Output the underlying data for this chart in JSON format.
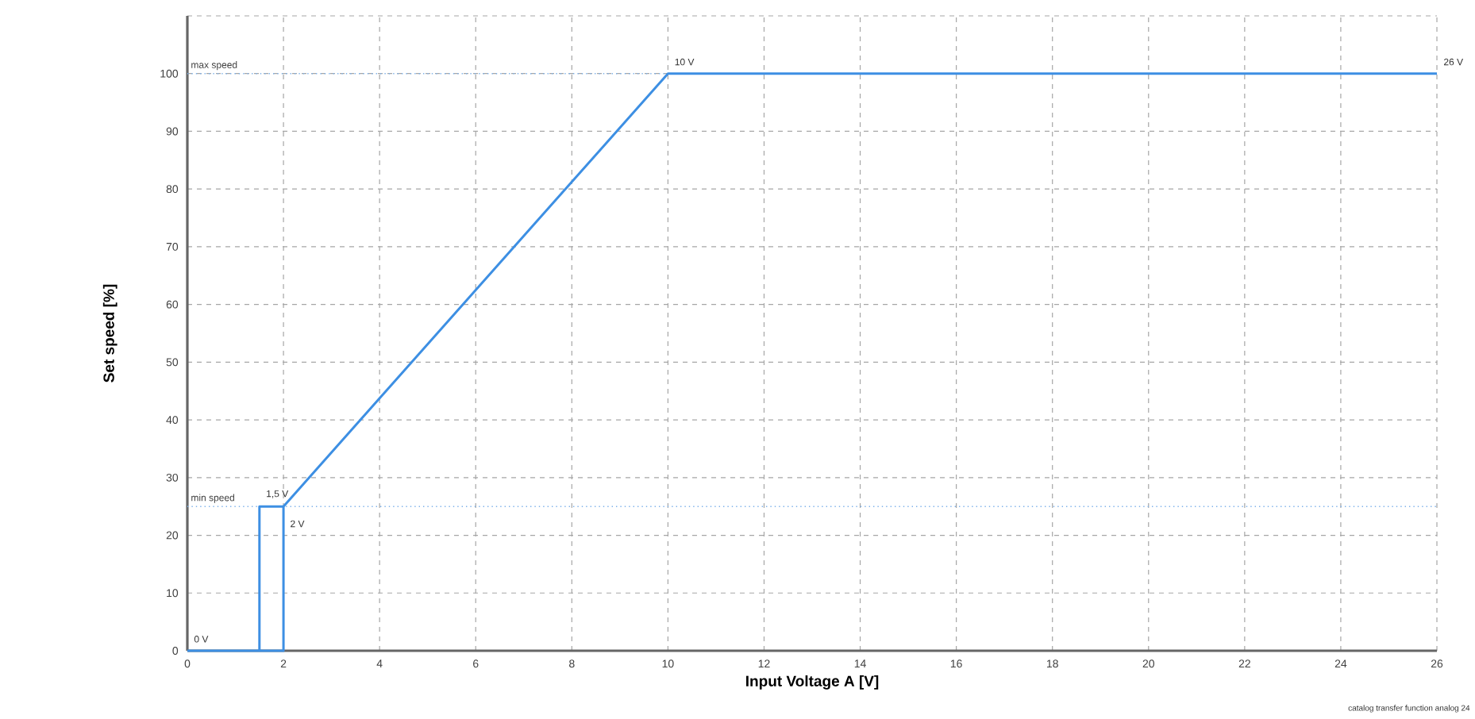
{
  "chart_data": {
    "type": "line",
    "xlabel": "Input Voltage A [V]",
    "ylabel": "Set speed [%]",
    "xlim": [
      0,
      26
    ],
    "xticks": [
      0,
      2,
      4,
      6,
      8,
      10,
      12,
      14,
      16,
      18,
      20,
      22,
      24,
      26
    ],
    "ylim": [
      0,
      110
    ],
    "yticks": [
      0,
      10,
      20,
      30,
      40,
      50,
      60,
      70,
      80,
      90,
      100,
      {
        "value": 110,
        "label": null
      }
    ],
    "grid": true,
    "marker": "none",
    "line_style": "solid",
    "series": [
      {
        "color": "#3d8fe3",
        "x": [
          0,
          2,
          2,
          10,
          26
        ],
        "values": [
          0,
          0,
          25,
          100,
          100
        ]
      },
      {
        "color": "#3d8fe3",
        "x": [
          2,
          1.5,
          1.5
        ],
        "values": [
          25,
          25,
          0
        ]
      }
    ],
    "ref_lines": [
      {
        "axis": "y",
        "value": 100,
        "label": "max speed",
        "color": "#7fb2ea",
        "line_style": "dotted"
      },
      {
        "axis": "y",
        "value": 25,
        "label": "min speed",
        "color": "#7fb2ea",
        "line_style": "dotted"
      }
    ],
    "annotations": [
      {
        "text": "0 V",
        "x": 0,
        "y": 0
      },
      {
        "text": "1,5 V",
        "x": 1.5,
        "y": 25
      },
      {
        "text": "2 V",
        "x": 2,
        "y": 20
      },
      {
        "text": "10 V",
        "x": 10,
        "y": 100
      },
      {
        "text": "26 V",
        "x": 26,
        "y": 100
      },
      "catalog transfer function analog 24"
    ]
  }
}
